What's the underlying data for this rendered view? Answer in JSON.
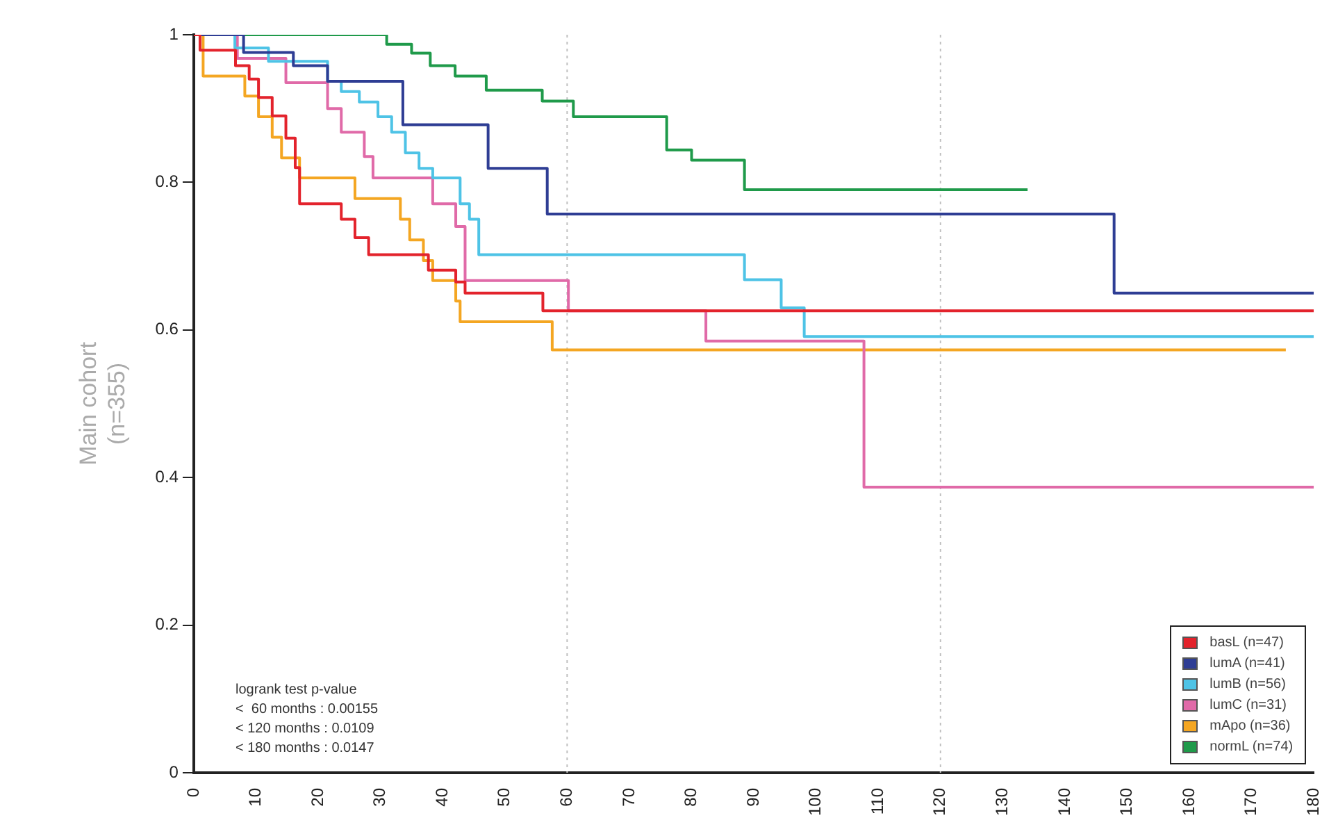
{
  "chart_data": {
    "type": "step",
    "ylabel": "Main cohort\n(n=355)",
    "xlim": [
      0,
      180
    ],
    "xticks": [
      0,
      10,
      20,
      30,
      40,
      50,
      60,
      70,
      80,
      90,
      100,
      110,
      120,
      130,
      140,
      150,
      160,
      170,
      180
    ],
    "ylim": [
      0,
      1
    ],
    "yticks": [
      0,
      0.2,
      0.4,
      0.6,
      0.8,
      1
    ],
    "grid": false,
    "legend": "bottom right",
    "marker": "none",
    "line_style": "solid",
    "ref_lines": [
      {
        "axis": "x",
        "value": 60,
        "color": "#c0c0c0",
        "line_style": "dotted"
      },
      {
        "axis": "x",
        "value": 120,
        "color": "#c0c0c0",
        "line_style": "dotted"
      }
    ],
    "annotations": [
      "logrank test p-value",
      "<  60 months : 0.00155",
      "< 120 months : 0.0109",
      "< 180 months : 0.0147"
    ],
    "series": [
      {
        "name": "basL (n=47)",
        "color": "#e3232c",
        "x": [
          0,
          1,
          6.7,
          8.9,
          10.4,
          12.6,
          14.8,
          16.3,
          17,
          23.7,
          25.9,
          28.1,
          37.7,
          42.1,
          43.6,
          56.1,
          180
        ],
        "values": [
          1,
          0.979,
          0.958,
          0.94,
          0.915,
          0.89,
          0.86,
          0.82,
          0.771,
          0.75,
          0.725,
          0.702,
          0.681,
          0.665,
          0.65,
          0.626,
          0.626
        ]
      },
      {
        "name": "lumA (n=41)",
        "color": "#2e3d94",
        "x": [
          0,
          8,
          16,
          21.5,
          33.6,
          47.3,
          56.8,
          147.9,
          180
        ],
        "values": [
          1,
          0.976,
          0.958,
          0.937,
          0.878,
          0.819,
          0.757,
          0.65,
          0.65
        ]
      },
      {
        "name": "lumB (n=56)",
        "color": "#4ec3e6",
        "x": [
          0,
          6.6,
          12,
          21.5,
          23.7,
          26.6,
          29.6,
          31.8,
          34,
          36.2,
          38.4,
          42.8,
          44.3,
          45.8,
          88.5,
          94.4,
          98.1,
          180
        ],
        "values": [
          1,
          0.982,
          0.964,
          0.937,
          0.923,
          0.909,
          0.889,
          0.868,
          0.84,
          0.819,
          0.806,
          0.771,
          0.75,
          0.702,
          0.668,
          0.63,
          0.591,
          0.591
        ]
      },
      {
        "name": "lumC (n=31)",
        "color": "#e06aa8",
        "x": [
          0,
          7,
          14.8,
          21.5,
          23.7,
          27.4,
          28.8,
          38.4,
          42.1,
          43.6,
          60.2,
          82.3,
          107.7,
          180
        ],
        "values": [
          1,
          0.968,
          0.935,
          0.9,
          0.868,
          0.835,
          0.806,
          0.771,
          0.74,
          0.667,
          0.626,
          0.585,
          0.387,
          0.387
        ]
      },
      {
        "name": "mApo (n=36)",
        "color": "#f4a622",
        "x": [
          0,
          1.5,
          8.2,
          10.4,
          12.6,
          14.1,
          17,
          25.9,
          33.2,
          34.7,
          36.9,
          38.4,
          42.1,
          42.8,
          57.6,
          175.5
        ],
        "values": [
          1,
          0.944,
          0.917,
          0.889,
          0.861,
          0.833,
          0.806,
          0.778,
          0.75,
          0.722,
          0.694,
          0.667,
          0.639,
          0.611,
          0.573,
          0.573
        ]
      },
      {
        "name": "normL (n=74)",
        "color": "#1f9a4a",
        "x": [
          0,
          31,
          35,
          38,
          42,
          47,
          56,
          61,
          76,
          80,
          88.5,
          134
        ],
        "values": [
          1,
          0.987,
          0.975,
          0.958,
          0.944,
          0.925,
          0.91,
          0.889,
          0.844,
          0.83,
          0.79,
          0.79
        ]
      }
    ]
  }
}
